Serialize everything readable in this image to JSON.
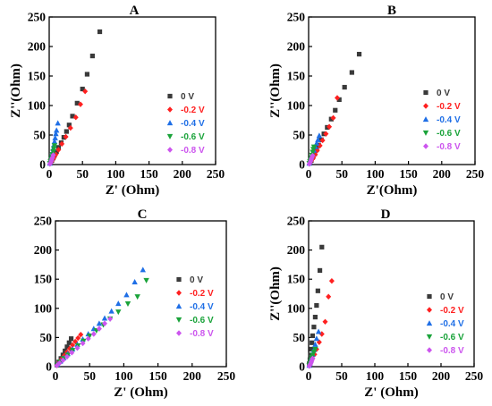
{
  "chart_data": [
    {
      "type": "scatter",
      "title": "A",
      "xlabel": "Z' (Ohm)",
      "ylabel": "Z''(Ohm)",
      "xlim": [
        0,
        250
      ],
      "ylim": [
        0,
        250
      ],
      "xticks": [
        "0",
        "50",
        "100",
        "150",
        "200",
        "250"
      ],
      "yticks": [
        "0",
        "50",
        "100",
        "150",
        "200",
        "250"
      ],
      "grid": false,
      "legend": "right",
      "series": [
        {
          "name": "0 V",
          "color": "#3a3a3a",
          "marker": "square",
          "x": [
            2,
            4,
            6,
            8,
            11,
            14,
            18,
            22,
            26,
            30,
            35,
            42,
            50,
            57,
            65,
            76
          ],
          "y": [
            3,
            7,
            11,
            16,
            22,
            29,
            37,
            46,
            56,
            67,
            82,
            104,
            128,
            153,
            184,
            225
          ]
        },
        {
          "name": "-0.2 V",
          "color": "#ff2020",
          "marker": "diamond",
          "x": [
            2,
            4,
            7,
            10,
            14,
            19,
            25,
            32,
            40,
            47,
            54
          ],
          "y": [
            2,
            6,
            11,
            17,
            25,
            35,
            47,
            62,
            80,
            102,
            124
          ]
        },
        {
          "name": "-0.4 V",
          "color": "#1f6fe6",
          "marker": "triangle-up",
          "x": [
            1,
            2,
            3,
            4,
            5,
            6,
            7,
            8,
            9,
            10,
            11,
            13
          ],
          "y": [
            2,
            6,
            10,
            15,
            21,
            27,
            33,
            39,
            45,
            52,
            58,
            70
          ]
        },
        {
          "name": "-0.6 V",
          "color": "#1aa33a",
          "marker": "triangle-down",
          "x": [
            1,
            2,
            3,
            4,
            5,
            6,
            7,
            8
          ],
          "y": [
            2,
            5,
            9,
            13,
            17,
            22,
            27,
            32
          ]
        },
        {
          "name": "-0.8 V",
          "color": "#cc55ee",
          "marker": "diamond",
          "x": [
            1,
            2,
            3,
            4,
            5,
            6
          ],
          "y": [
            1,
            3,
            6,
            9,
            12,
            16
          ]
        }
      ]
    },
    {
      "type": "scatter",
      "title": "B",
      "xlabel": "Z'(Ohm)",
      "ylabel": "Z''(Ohm)",
      "xlim": [
        0,
        250
      ],
      "ylim": [
        0,
        250
      ],
      "xticks": [
        "0",
        "50",
        "100",
        "150",
        "200",
        "250"
      ],
      "yticks": [
        "0",
        "50",
        "100",
        "150",
        "200",
        "250"
      ],
      "grid": false,
      "legend": "right",
      "series": [
        {
          "name": "0 V",
          "color": "#3a3a3a",
          "marker": "square",
          "x": [
            2,
            4,
            6,
            9,
            12,
            15,
            19,
            23,
            28,
            34,
            40,
            46,
            54,
            65,
            76
          ],
          "y": [
            3,
            7,
            12,
            18,
            25,
            33,
            42,
            52,
            63,
            77,
            92,
            110,
            131,
            156,
            187
          ]
        },
        {
          "name": "-0.2 V",
          "color": "#ff2020",
          "marker": "diamond",
          "x": [
            2,
            4,
            7,
            10,
            13,
            17,
            21,
            26,
            31,
            37,
            43
          ],
          "y": [
            2,
            6,
            11,
            17,
            24,
            32,
            41,
            52,
            64,
            79,
            113
          ]
        },
        {
          "name": "-0.4 V",
          "color": "#1f6fe6",
          "marker": "triangle-up",
          "x": [
            1,
            2,
            3,
            4,
            6,
            8,
            10,
            12,
            14,
            16
          ],
          "y": [
            2,
            5,
            9,
            13,
            18,
            24,
            30,
            36,
            42,
            49
          ]
        },
        {
          "name": "-0.6 V",
          "color": "#1aa33a",
          "marker": "triangle-down",
          "x": [
            1,
            2,
            3,
            4,
            5,
            6,
            7,
            8
          ],
          "y": [
            2,
            5,
            8,
            12,
            16,
            21,
            26,
            30
          ]
        },
        {
          "name": "-0.8 V",
          "color": "#cc55ee",
          "marker": "diamond",
          "x": [
            1,
            2,
            3,
            4,
            5,
            6
          ],
          "y": [
            1,
            3,
            6,
            9,
            12,
            15
          ]
        }
      ]
    },
    {
      "type": "scatter",
      "title": "C",
      "xlabel": "Z' (Ohm)",
      "ylabel": "",
      "xlim": [
        0,
        250
      ],
      "ylim": [
        0,
        250
      ],
      "xticks": [
        "0",
        "50",
        "100",
        "150",
        "200",
        "250"
      ],
      "yticks": [
        "0",
        "50",
        "100",
        "150",
        "200",
        "250"
      ],
      "grid": false,
      "legend": "right",
      "series": [
        {
          "name": "0 V",
          "color": "#3a3a3a",
          "marker": "square",
          "x": [
            2,
            5,
            8,
            11,
            14,
            17,
            20,
            23
          ],
          "y": [
            3,
            8,
            14,
            20,
            27,
            34,
            41,
            48
          ]
        },
        {
          "name": "-0.2 V",
          "color": "#ff2020",
          "marker": "diamond",
          "x": [
            2,
            5,
            9,
            13,
            17,
            21,
            25,
            29,
            33,
            37
          ],
          "y": [
            2,
            7,
            13,
            19,
            25,
            31,
            37,
            43,
            49,
            55
          ]
        },
        {
          "name": "-0.4 V",
          "color": "#1f6fe6",
          "marker": "triangle-up",
          "x": [
            3,
            7,
            12,
            18,
            25,
            32,
            40,
            48,
            56,
            64,
            72,
            82,
            92,
            104,
            116,
            128
          ],
          "y": [
            4,
            9,
            15,
            22,
            30,
            38,
            47,
            56,
            65,
            74,
            83,
            95,
            108,
            123,
            145,
            166
          ]
        },
        {
          "name": "-0.6 V",
          "color": "#1aa33a",
          "marker": "triangle-down",
          "x": [
            3,
            7,
            12,
            18,
            25,
            33,
            41,
            50,
            60,
            70,
            80,
            92,
            106,
            120,
            133
          ],
          "y": [
            3,
            8,
            14,
            20,
            28,
            36,
            44,
            53,
            62,
            72,
            82,
            94,
            108,
            120,
            148
          ]
        },
        {
          "name": "-0.8 V",
          "color": "#cc55ee",
          "marker": "diamond",
          "x": [
            2,
            6,
            11,
            17,
            24,
            32,
            40,
            48,
            56,
            64,
            72,
            80
          ],
          "y": [
            2,
            6,
            11,
            17,
            24,
            32,
            40,
            48,
            56,
            65,
            74,
            82
          ]
        }
      ]
    },
    {
      "type": "scatter",
      "title": "D",
      "xlabel": "Z' (Ohm)",
      "ylabel": "Z''(Ohm)",
      "xlim": [
        0,
        250
      ],
      "ylim": [
        0,
        250
      ],
      "xticks": [
        "0",
        "50",
        "100",
        "150",
        "200",
        "250"
      ],
      "yticks": [
        "0",
        "50",
        "100",
        "150",
        "200",
        "250"
      ],
      "grid": false,
      "legend": "right",
      "series": [
        {
          "name": "0 V",
          "color": "#3a3a3a",
          "marker": "square",
          "x": [
            1,
            2,
            3,
            4,
            5,
            6,
            8,
            10,
            12,
            14,
            17,
            20
          ],
          "y": [
            5,
            12,
            20,
            30,
            41,
            53,
            68,
            85,
            105,
            130,
            165,
            205
          ]
        },
        {
          "name": "-0.2 V",
          "color": "#ff2020",
          "marker": "diamond",
          "x": [
            2,
            4,
            6,
            9,
            12,
            16,
            20,
            25,
            30,
            35
          ],
          "y": [
            3,
            8,
            14,
            21,
            30,
            42,
            56,
            77,
            120,
            147
          ]
        },
        {
          "name": "-0.4 V",
          "color": "#1f6fe6",
          "marker": "triangle-up",
          "x": [
            1,
            2,
            3,
            4,
            6,
            8,
            10,
            12,
            15
          ],
          "y": [
            2,
            6,
            10,
            15,
            21,
            29,
            38,
            48,
            60
          ]
        },
        {
          "name": "-0.6 V",
          "color": "#1aa33a",
          "marker": "triangle-down",
          "x": [
            1,
            2,
            3,
            4,
            5,
            6,
            8,
            10
          ],
          "y": [
            2,
            5,
            8,
            12,
            16,
            20,
            25,
            30
          ]
        },
        {
          "name": "-0.8 V",
          "color": "#cc55ee",
          "marker": "diamond",
          "x": [
            1,
            2,
            3,
            4,
            5,
            6
          ],
          "y": [
            1,
            3,
            5,
            8,
            11,
            14
          ]
        }
      ]
    }
  ]
}
